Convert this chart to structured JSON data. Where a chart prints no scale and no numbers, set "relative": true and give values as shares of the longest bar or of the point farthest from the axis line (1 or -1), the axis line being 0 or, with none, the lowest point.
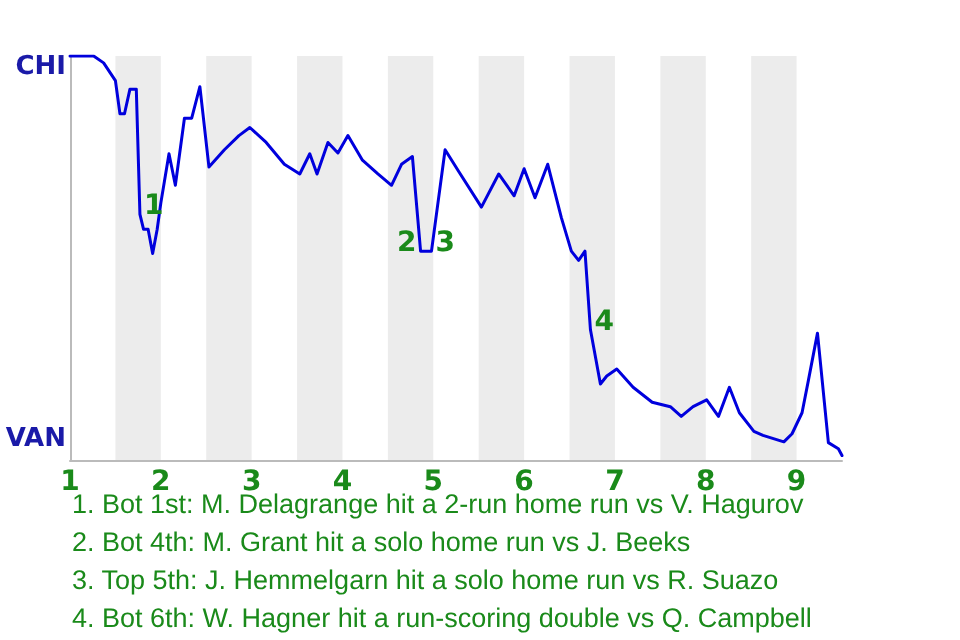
{
  "chart_data": {
    "type": "line",
    "relative": true,
    "x": [
      1.0,
      1.26,
      1.37,
      1.5,
      1.55,
      1.6,
      1.66,
      1.73,
      1.77,
      1.81,
      1.86,
      1.91,
      1.96,
      2.0,
      2.09,
      2.16,
      2.26,
      2.34,
      2.43,
      2.53,
      2.7,
      2.86,
      2.98,
      3.16,
      3.36,
      3.53,
      3.64,
      3.72,
      3.84,
      3.95,
      4.06,
      4.22,
      4.39,
      4.54,
      4.65,
      4.77,
      4.86,
      4.98,
      5.13,
      5.28,
      5.53,
      5.72,
      5.89,
      6.0,
      6.12,
      6.26,
      6.41,
      6.52,
      6.6,
      6.67,
      6.73,
      6.84,
      6.91,
      7.02,
      7.2,
      7.41,
      7.61,
      7.73,
      7.86,
      8.01,
      8.14,
      8.26,
      8.37,
      8.53,
      8.63,
      8.86,
      8.95,
      9.06,
      9.13,
      9.23,
      9.35,
      9.46,
      9.5
    ],
    "series": [
      {
        "color": "#0000dd",
        "values": [
          1,
          1,
          0.983,
          0.939,
          0.857,
          0.857,
          0.918,
          0.918,
          0.608,
          0.571,
          0.571,
          0.511,
          0.571,
          0.636,
          0.758,
          0.68,
          0.846,
          0.846,
          0.924,
          0.725,
          0.768,
          0.803,
          0.823,
          0.786,
          0.732,
          0.708,
          0.758,
          0.708,
          0.786,
          0.76,
          0.803,
          0.742,
          0.708,
          0.68,
          0.732,
          0.751,
          0.517,
          0.517,
          0.768,
          0.714,
          0.626,
          0.708,
          0.654,
          0.721,
          0.649,
          0.732,
          0.6,
          0.517,
          0.494,
          0.517,
          0.323,
          0.188,
          0.208,
          0.225,
          0.18,
          0.143,
          0.132,
          0.108,
          0.132,
          0.149,
          0.108,
          0.18,
          0.117,
          0.071,
          0.061,
          0.045,
          0.065,
          0.117,
          0.197,
          0.314,
          0.043,
          0.028,
          0.011
        ]
      }
    ],
    "xlim": [
      1,
      9.5
    ],
    "xticks": [
      1,
      2,
      3,
      4,
      5,
      6,
      7,
      8,
      9
    ],
    "marker": "none",
    "line_style": "solid",
    "bands": [
      {
        "axis": "x",
        "from": 1.5,
        "to": 2,
        "color": "#ececec"
      },
      {
        "axis": "x",
        "from": 2.5,
        "to": 3,
        "color": "#ececec"
      },
      {
        "axis": "x",
        "from": 3.5,
        "to": 4,
        "color": "#ececec"
      },
      {
        "axis": "x",
        "from": 4.5,
        "to": 5,
        "color": "#ececec"
      },
      {
        "axis": "x",
        "from": 5.5,
        "to": 6,
        "color": "#ececec"
      },
      {
        "axis": "x",
        "from": 6.5,
        "to": 7,
        "color": "#ececec"
      },
      {
        "axis": "x",
        "from": 7.5,
        "to": 8,
        "color": "#ececec"
      },
      {
        "axis": "x",
        "from": 8.5,
        "to": 9,
        "color": "#ececec"
      }
    ],
    "annotations": [
      "CHI",
      "VAN",
      {
        "text": "1",
        "x": 1.77,
        "y": 0.608
      },
      {
        "text": "2",
        "x": 4.86,
        "y": 0.517
      },
      {
        "text": "3",
        "x": 4.98,
        "y": 0.517
      },
      {
        "text": "4",
        "x": 6.73,
        "y": 0.323
      },
      "1. Bot 1st: M. Delagrange hit a 2-run home run vs V. Hagurov",
      "2. Bot 4th: M. Grant hit a solo home run vs J. Beeks",
      "3. Top 5th: J. Hemmelgarn hit a solo home run vs R. Suazo",
      "4. Bot 6th: W. Hagner hit a run-scoring double vs Q. Campbell"
    ]
  }
}
